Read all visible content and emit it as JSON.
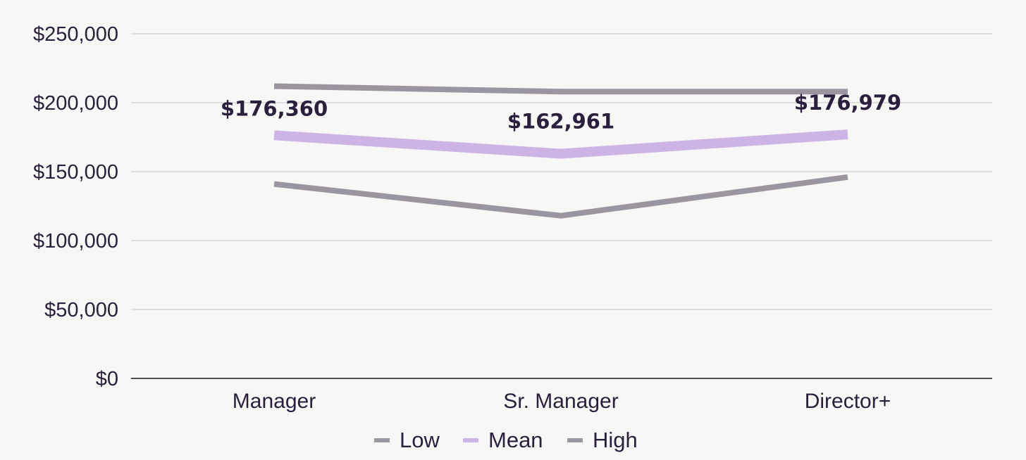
{
  "chart_data": {
    "type": "line",
    "categories": [
      "Manager",
      "Sr. Manager",
      "Director+"
    ],
    "series": [
      {
        "name": "Low",
        "values": [
          141000,
          118000,
          146000
        ],
        "color": "#9b95a0"
      },
      {
        "name": "Mean",
        "values": [
          176360,
          162961,
          176979
        ],
        "color": "#cdb3e6",
        "data_labels": [
          "$176,360",
          "$162,961",
          "$176,979"
        ]
      },
      {
        "name": "High",
        "values": [
          212000,
          208000,
          208000
        ],
        "color": "#9b95a0"
      }
    ],
    "ylim": [
      0,
      250000
    ],
    "yticks": [
      0,
      50000,
      100000,
      150000,
      200000,
      250000
    ],
    "ytick_labels": [
      "$0",
      "$50,000",
      "$100,000",
      "$150,000",
      "$200,000",
      "$250,000"
    ],
    "grid": true,
    "legend_position": "bottom"
  }
}
